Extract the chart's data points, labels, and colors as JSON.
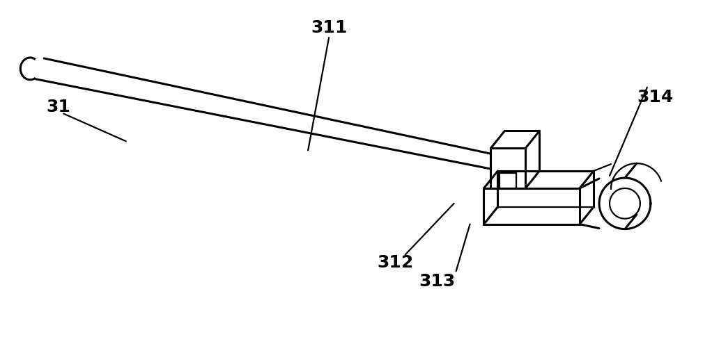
{
  "bg_color": "#ffffff",
  "lc": "#000000",
  "lw": 2.2,
  "tlw": 1.6,
  "fs": 18,
  "fw": "bold"
}
